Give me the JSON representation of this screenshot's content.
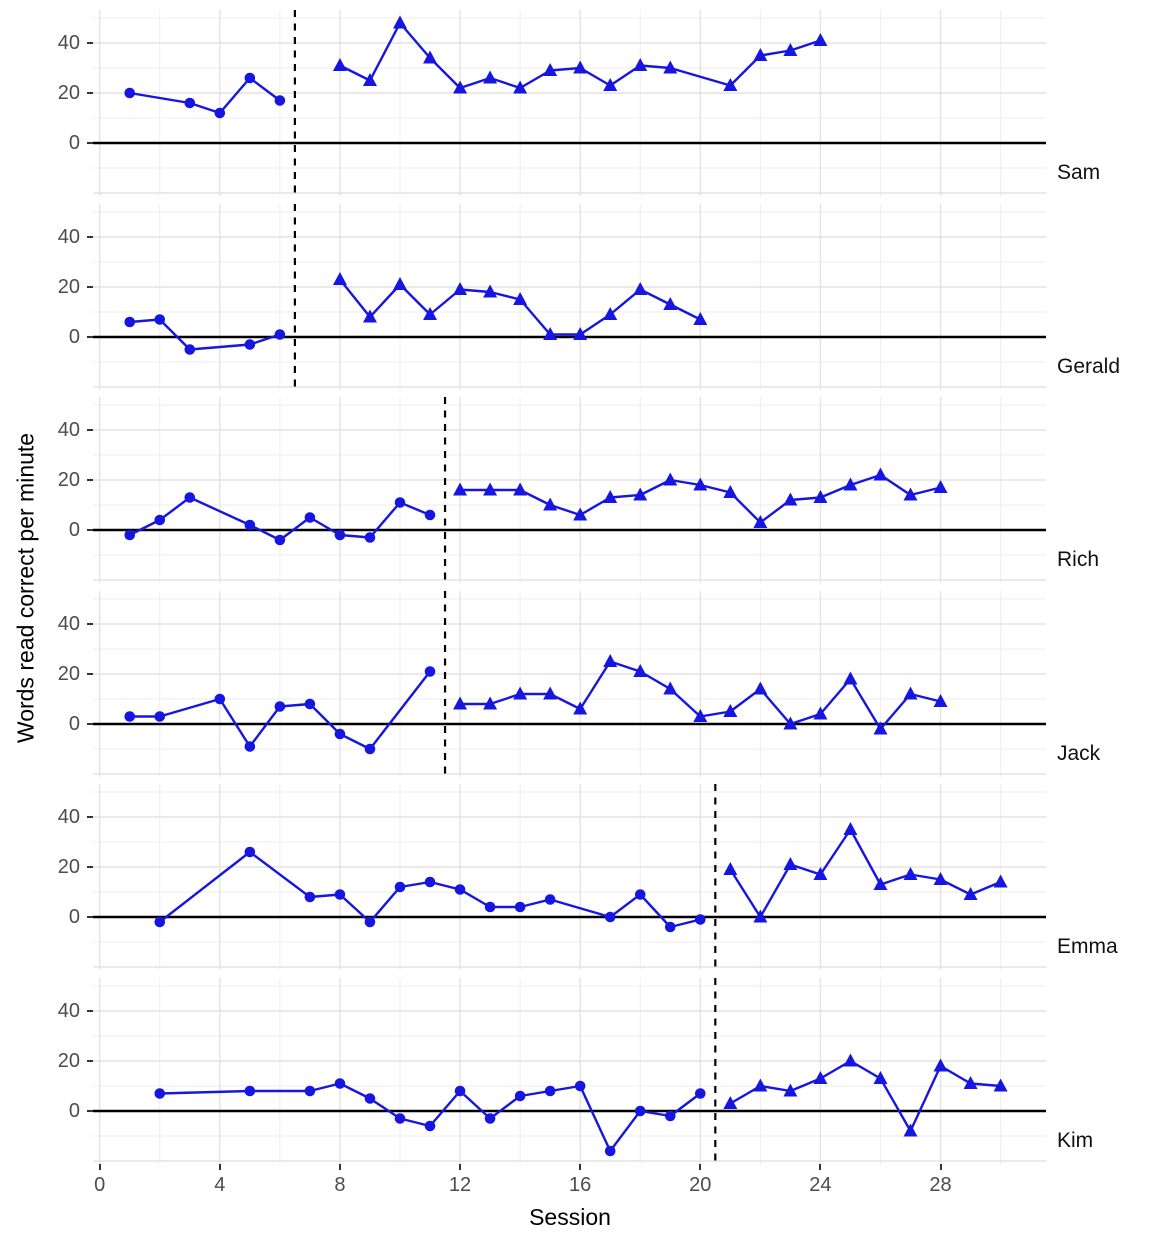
{
  "chart_data": {
    "type": "line",
    "layout": "multiple-baseline-design",
    "title": "",
    "xlabel": "Session",
    "ylabel": "Words read correct per minute",
    "x_ticks": [
      0,
      4,
      8,
      12,
      16,
      20,
      24,
      28
    ],
    "y_ticks": [
      0,
      20,
      40
    ],
    "xlim": [
      -0.2,
      31.5
    ],
    "ylim": [
      -21,
      53
    ],
    "grid": true,
    "legend": "none",
    "phase_line_style": "dashed-vertical-black",
    "colors": {
      "series": "#1616E0",
      "zero_line": "#000000",
      "phase_line": "#000000",
      "grid_major": "#E3E3E3",
      "grid_minor": "#F0F0F0",
      "axis_text": "#4D4D4D",
      "axis_title": "#000000",
      "facet_label": "#111111",
      "background": "#FFFFFF"
    },
    "panels": [
      {
        "name": "Sam",
        "phase_change_x": 6.5,
        "baseline": {
          "marker": "circle",
          "points": [
            [
              1,
              20
            ],
            [
              3,
              16
            ],
            [
              4,
              12
            ],
            [
              5,
              26
            ],
            [
              6,
              17
            ]
          ]
        },
        "intervention": {
          "marker": "triangle",
          "points": [
            [
              8,
              31
            ],
            [
              9,
              25
            ],
            [
              10,
              48
            ],
            [
              11,
              34
            ],
            [
              12,
              22
            ],
            [
              13,
              26
            ],
            [
              14,
              22
            ],
            [
              15,
              29
            ],
            [
              16,
              30
            ],
            [
              17,
              23
            ],
            [
              18,
              31
            ],
            [
              19,
              30
            ],
            [
              21,
              23
            ],
            [
              22,
              35
            ],
            [
              23,
              37
            ],
            [
              24,
              41
            ]
          ]
        }
      },
      {
        "name": "Gerald",
        "phase_change_x": 6.5,
        "baseline": {
          "marker": "circle",
          "points": [
            [
              1,
              6
            ],
            [
              2,
              7
            ],
            [
              3,
              -5
            ],
            [
              5,
              -3
            ],
            [
              6,
              1
            ]
          ]
        },
        "intervention": {
          "marker": "triangle",
          "points": [
            [
              8,
              23
            ],
            [
              9,
              8
            ],
            [
              10,
              21
            ],
            [
              11,
              9
            ],
            [
              12,
              19
            ],
            [
              13,
              18
            ],
            [
              14,
              15
            ],
            [
              15,
              1
            ],
            [
              16,
              1
            ],
            [
              17,
              9
            ],
            [
              18,
              19
            ],
            [
              19,
              13
            ],
            [
              20,
              7
            ]
          ]
        }
      },
      {
        "name": "Rich",
        "phase_change_x": 11.5,
        "baseline": {
          "marker": "circle",
          "points": [
            [
              1,
              -2
            ],
            [
              2,
              4
            ],
            [
              3,
              13
            ],
            [
              5,
              2
            ],
            [
              6,
              -4
            ],
            [
              7,
              5
            ],
            [
              8,
              -2
            ],
            [
              9,
              -3
            ],
            [
              10,
              11
            ],
            [
              11,
              6
            ]
          ]
        },
        "intervention": {
          "marker": "triangle",
          "points": [
            [
              12,
              16
            ],
            [
              13,
              16
            ],
            [
              14,
              16
            ],
            [
              15,
              10
            ],
            [
              16,
              6
            ],
            [
              17,
              13
            ],
            [
              18,
              14
            ],
            [
              19,
              20
            ],
            [
              20,
              18
            ],
            [
              21,
              15
            ],
            [
              22,
              3
            ],
            [
              23,
              12
            ],
            [
              24,
              13
            ],
            [
              25,
              18
            ],
            [
              26,
              22
            ],
            [
              27,
              14
            ],
            [
              28,
              17
            ]
          ]
        }
      },
      {
        "name": "Jack",
        "phase_change_x": 11.5,
        "baseline": {
          "marker": "circle",
          "points": [
            [
              1,
              3
            ],
            [
              2,
              3
            ],
            [
              4,
              10
            ],
            [
              5,
              -9
            ],
            [
              6,
              7
            ],
            [
              7,
              8
            ],
            [
              8,
              -4
            ],
            [
              9,
              -10
            ],
            [
              11,
              21
            ]
          ]
        },
        "intervention": {
          "marker": "triangle",
          "points": [
            [
              12,
              8
            ],
            [
              13,
              8
            ],
            [
              14,
              12
            ],
            [
              15,
              12
            ],
            [
              16,
              6
            ],
            [
              17,
              25
            ],
            [
              18,
              21
            ],
            [
              19,
              14
            ],
            [
              20,
              3
            ],
            [
              21,
              5
            ],
            [
              22,
              14
            ],
            [
              23,
              0
            ],
            [
              24,
              4
            ],
            [
              25,
              18
            ],
            [
              26,
              -2
            ],
            [
              27,
              12
            ],
            [
              28,
              9
            ]
          ]
        }
      },
      {
        "name": "Emma",
        "phase_change_x": 20.5,
        "baseline": {
          "marker": "circle",
          "points": [
            [
              2,
              -2
            ],
            [
              5,
              26
            ],
            [
              7,
              8
            ],
            [
              8,
              9
            ],
            [
              9,
              -2
            ],
            [
              10,
              12
            ],
            [
              11,
              14
            ],
            [
              12,
              11
            ],
            [
              13,
              4
            ],
            [
              14,
              4
            ],
            [
              15,
              7
            ],
            [
              17,
              0
            ],
            [
              18,
              9
            ],
            [
              19,
              -4
            ],
            [
              20,
              -1
            ]
          ]
        },
        "intervention": {
          "marker": "triangle",
          "points": [
            [
              21,
              19
            ],
            [
              22,
              0
            ],
            [
              23,
              21
            ],
            [
              24,
              17
            ],
            [
              25,
              35
            ],
            [
              26,
              13
            ],
            [
              27,
              17
            ],
            [
              28,
              15
            ],
            [
              29,
              9
            ],
            [
              30,
              14
            ]
          ]
        }
      },
      {
        "name": "Kim",
        "phase_change_x": 20.5,
        "baseline": {
          "marker": "circle",
          "points": [
            [
              2,
              7
            ],
            [
              5,
              8
            ],
            [
              7,
              8
            ],
            [
              8,
              11
            ],
            [
              9,
              5
            ],
            [
              10,
              -3
            ],
            [
              11,
              -6
            ],
            [
              12,
              8
            ],
            [
              13,
              -3
            ],
            [
              14,
              6
            ],
            [
              15,
              8
            ],
            [
              16,
              10
            ],
            [
              17,
              -16
            ],
            [
              18,
              0
            ],
            [
              19,
              -2
            ],
            [
              20,
              7
            ]
          ]
        },
        "intervention": {
          "marker": "triangle",
          "points": [
            [
              21,
              3
            ],
            [
              22,
              10
            ],
            [
              23,
              8
            ],
            [
              24,
              13
            ],
            [
              25,
              20
            ],
            [
              26,
              13
            ],
            [
              27,
              -8
            ],
            [
              28,
              18
            ],
            [
              29,
              11
            ],
            [
              30,
              10
            ]
          ]
        }
      }
    ]
  }
}
